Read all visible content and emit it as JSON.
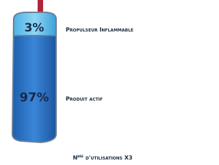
{
  "canister": {
    "top": {
      "percent": "3%",
      "label": "Propulseur Inflammable"
    },
    "bottom": {
      "percent": "97%",
      "label": "Produit actif"
    }
  },
  "footer": {
    "prefix": "N",
    "superscript": "bre",
    "text": "d'utilisations X3"
  }
}
